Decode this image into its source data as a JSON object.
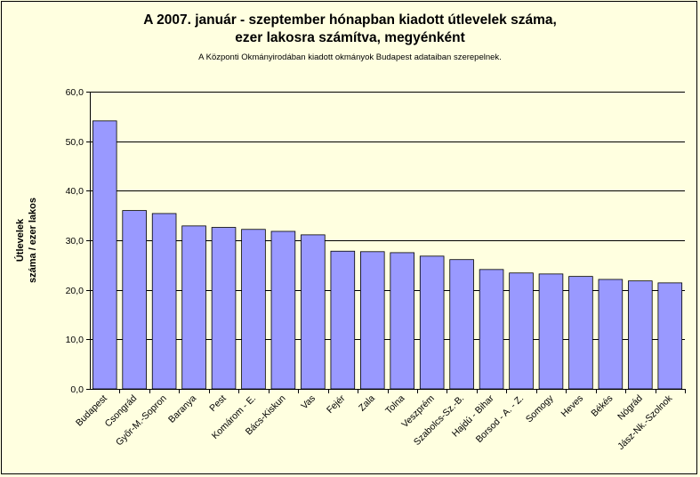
{
  "chart_data": {
    "type": "bar",
    "title_line1": "A 2007. január - szeptember hónapban kiadott útlevelek száma,",
    "title_line2": "ezer lakosra számítva, megyénként",
    "subtitle": "A Központi Okmányirodában kiadott okmányok Budapest adataiban szerepelnek.",
    "ylabel_line1": "Útlevelek",
    "ylabel_line2": "száma / ezer lakos",
    "xlabel": "",
    "ylim": [
      0,
      60
    ],
    "yticks": [
      "0,0",
      "10,0",
      "20,0",
      "30,0",
      "40,0",
      "50,0",
      "60,0"
    ],
    "grid": true,
    "legend": "none",
    "categories": [
      "Budapest",
      "Csongrád",
      "Győr-M.-Sopron",
      "Baranya",
      "Pest",
      "Komárom - E.",
      "Bács-Kiskun",
      "Vas",
      "Fejér",
      "Zala",
      "Tolna",
      "Veszprém",
      "Szabolcs-Sz.-B.",
      "Hajdú - Bihar",
      "Borsod - A. - Z.",
      "Somogy",
      "Heves",
      "Békés",
      "Nógrád",
      "Jász-Nk.-Szolnok"
    ],
    "values": [
      54.1,
      36.0,
      35.4,
      32.9,
      32.6,
      32.2,
      31.8,
      31.1,
      27.8,
      27.7,
      27.5,
      26.8,
      26.1,
      24.1,
      23.4,
      23.2,
      22.7,
      22.1,
      21.8,
      21.4
    ],
    "colors": {
      "bar": "#9999ff",
      "bar_edge": "#000000",
      "plot_bg": "#ffffe0",
      "grid": "#000000"
    }
  }
}
